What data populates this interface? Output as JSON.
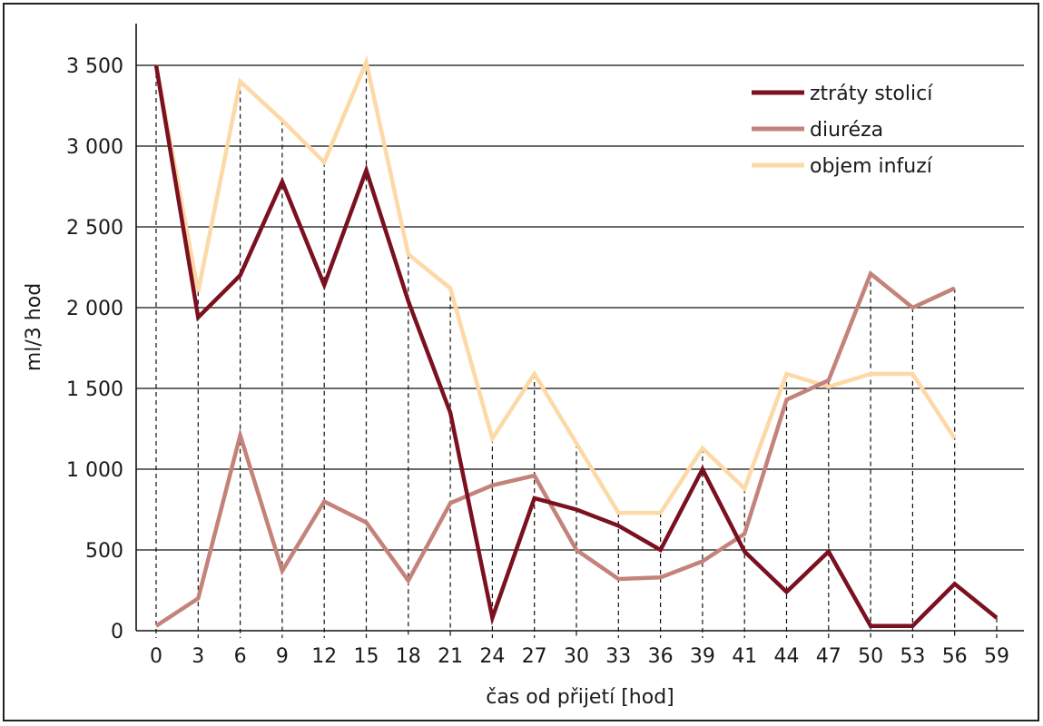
{
  "chart_data": {
    "type": "line",
    "xlabel": "čas od přijetí [hod]",
    "ylabel": "ml/3 hod",
    "ylim": [
      0,
      3500
    ],
    "yticks": [
      0,
      500,
      1000,
      1500,
      2000,
      2500,
      3000,
      3500
    ],
    "ytick_labels": [
      "0",
      "500",
      "1 000",
      "1 500",
      "2 000",
      "2 500",
      "3 000",
      "3 500"
    ],
    "categories": [
      "0",
      "3",
      "6",
      "9",
      "12",
      "15",
      "18",
      "21",
      "24",
      "27",
      "30",
      "33",
      "36",
      "39",
      "41",
      "44",
      "47",
      "50",
      "53",
      "56",
      "59"
    ],
    "grid": "horizontal",
    "legend_position": "top-right",
    "series": [
      {
        "name": "ztráty stolicí",
        "color": "#7a1020",
        "values": [
          3500,
          1940,
          2200,
          2780,
          2140,
          2850,
          2040,
          1350,
          80,
          820,
          750,
          650,
          500,
          1000,
          490,
          240,
          490,
          30,
          30,
          290,
          80
        ]
      },
      {
        "name": "diuréza",
        "color": "#c4837a",
        "values": [
          30,
          200,
          1210,
          370,
          800,
          670,
          310,
          790,
          900,
          960,
          500,
          320,
          330,
          430,
          600,
          1430,
          1550,
          2210,
          2000,
          2120,
          null
        ]
      },
      {
        "name": "objem infuzí",
        "color": "#fcd9a6",
        "values": [
          3500,
          2100,
          3400,
          3160,
          2900,
          3520,
          2330,
          2120,
          1190,
          1590,
          1160,
          730,
          730,
          1130,
          880,
          1590,
          1510,
          1590,
          1590,
          1190,
          null
        ]
      }
    ]
  }
}
